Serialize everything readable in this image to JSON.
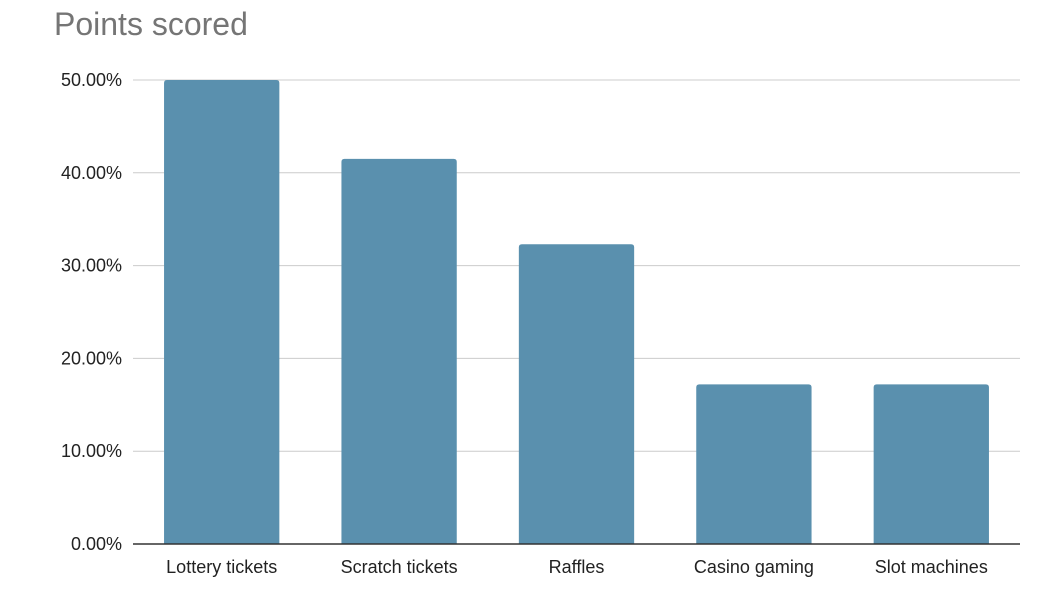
{
  "chart_data": {
    "type": "bar",
    "title": "Points scored",
    "xlabel": "",
    "ylabel": "",
    "categories": [
      "Lottery tickets",
      "Scratch tickets",
      "Raffles",
      "Casino gaming",
      "Slot machines"
    ],
    "values": [
      50.0,
      41.5,
      32.3,
      17.2,
      17.2
    ],
    "value_unit": "%",
    "ylim": [
      0,
      50
    ],
    "yticks": [
      0,
      10,
      20,
      30,
      40,
      50
    ],
    "ytick_labels": [
      "0.00%",
      "10.00%",
      "20.00%",
      "30.00%",
      "40.00%",
      "50.00%"
    ],
    "grid": true,
    "legend": "none",
    "bar_color": "#5a90ae",
    "grid_color": "#cccccc",
    "title_color": "#757575"
  }
}
